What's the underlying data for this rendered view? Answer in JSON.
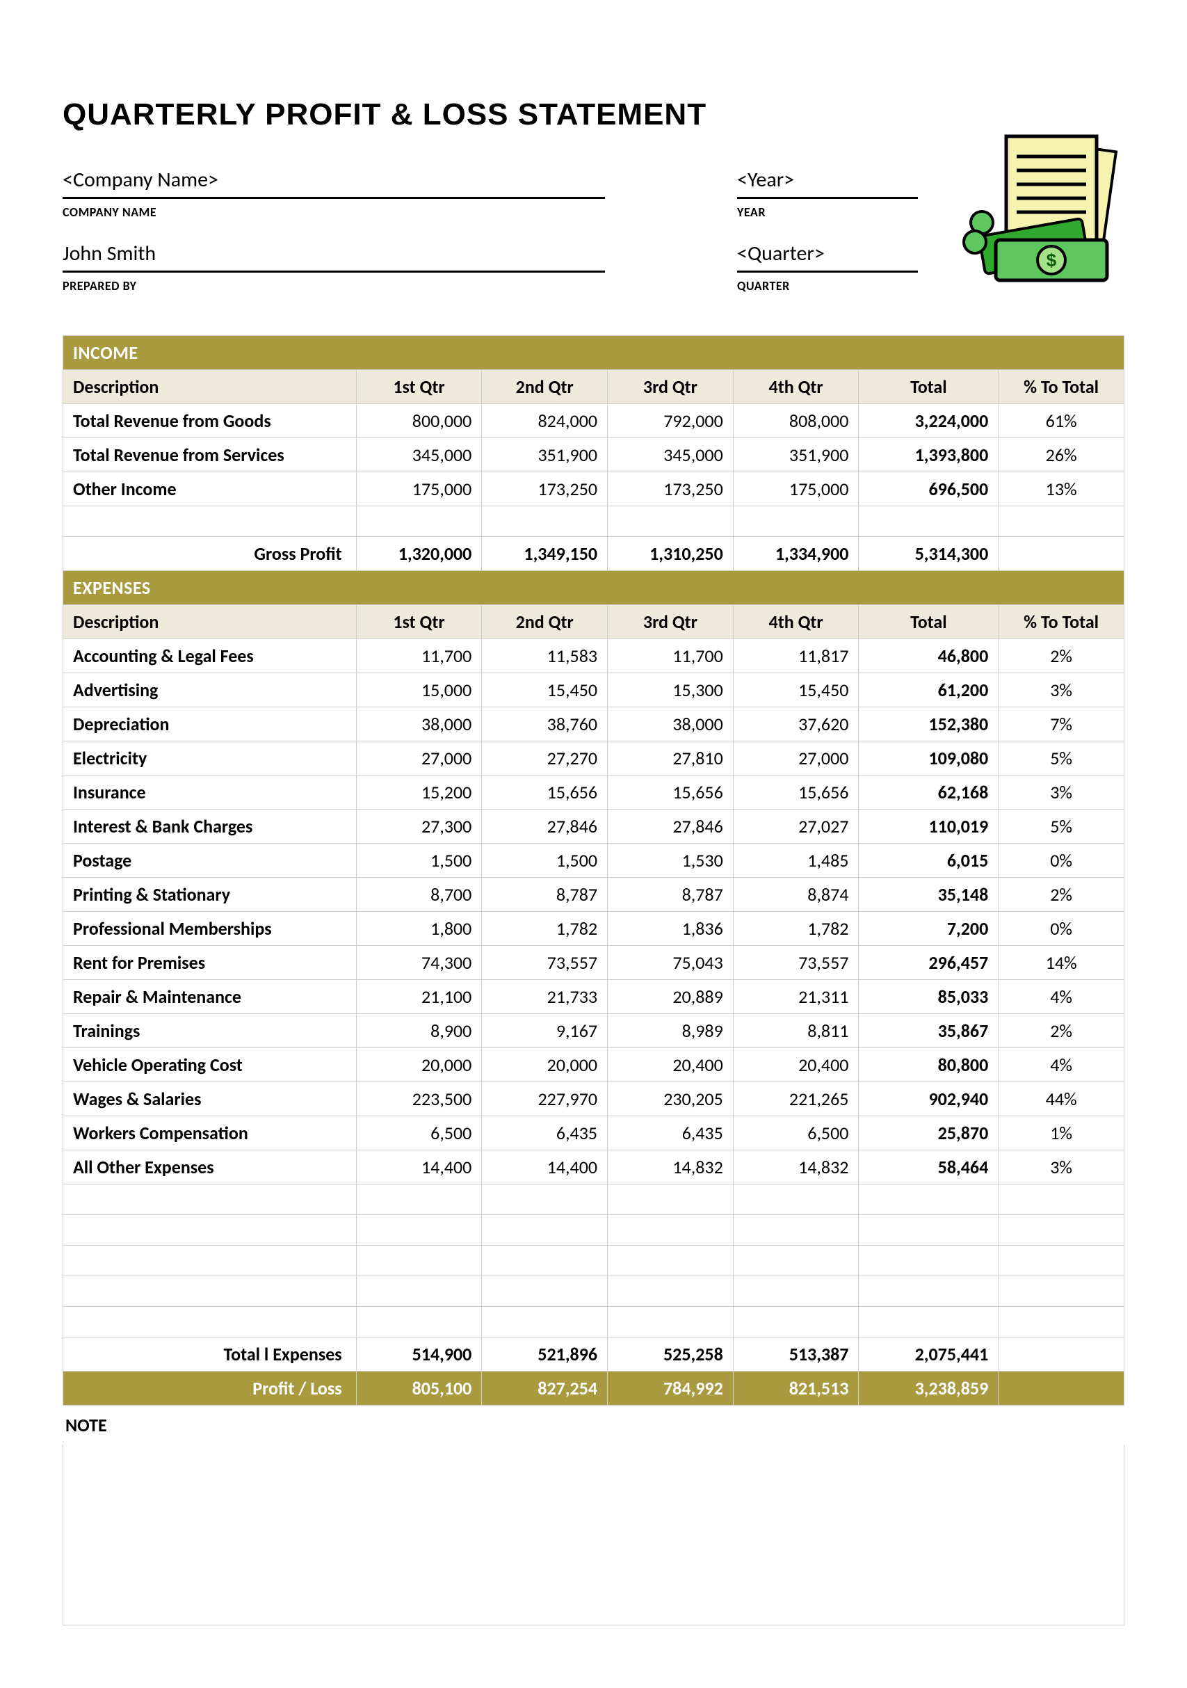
{
  "title": "QUARTERLY PROFIT & LOSS STATEMENT",
  "header": {
    "company_value": "<Company Name>",
    "company_label": "COMPANY NAME",
    "prepared_by_value": "John Smith",
    "prepared_by_label": "PREPARED BY",
    "year_value": "<Year>",
    "year_label": "YEAR",
    "quarter_value": "<Quarter>",
    "quarter_label": "QUARTER"
  },
  "colors": {
    "accent": "#a99a3f",
    "header_bg": "#eeeadb",
    "border": "#cfcfcf",
    "text": "#000000",
    "white": "#ffffff"
  },
  "columns": {
    "desc": "Description",
    "q1": "1st Qtr",
    "q2": "2nd Qtr",
    "q3": "3rd Qtr",
    "q4": "4th Qtr",
    "total": "Total",
    "pct": "% To Total"
  },
  "income": {
    "section_label": "INCOME",
    "rows": [
      {
        "desc": "Total Revenue from Goods",
        "q1": "800,000",
        "q2": "824,000",
        "q3": "792,000",
        "q4": "808,000",
        "total": "3,224,000",
        "pct": "61%"
      },
      {
        "desc": "Total Revenue from Services",
        "q1": "345,000",
        "q2": "351,900",
        "q3": "345,000",
        "q4": "351,900",
        "total": "1,393,800",
        "pct": "26%"
      },
      {
        "desc": "Other Income",
        "q1": "175,000",
        "q2": "173,250",
        "q3": "173,250",
        "q4": "175,000",
        "total": "696,500",
        "pct": "13%"
      }
    ],
    "gross_profit": {
      "label": "Gross Profit",
      "q1": "1,320,000",
      "q2": "1,349,150",
      "q3": "1,310,250",
      "q4": "1,334,900",
      "total": "5,314,300"
    }
  },
  "expenses": {
    "section_label": "EXPENSES",
    "rows": [
      {
        "desc": "Accounting & Legal Fees",
        "q1": "11,700",
        "q2": "11,583",
        "q3": "11,700",
        "q4": "11,817",
        "total": "46,800",
        "pct": "2%"
      },
      {
        "desc": "Advertising",
        "q1": "15,000",
        "q2": "15,450",
        "q3": "15,300",
        "q4": "15,450",
        "total": "61,200",
        "pct": "3%"
      },
      {
        "desc": "Depreciation",
        "q1": "38,000",
        "q2": "38,760",
        "q3": "38,000",
        "q4": "37,620",
        "total": "152,380",
        "pct": "7%"
      },
      {
        "desc": "Electricity",
        "q1": "27,000",
        "q2": "27,270",
        "q3": "27,810",
        "q4": "27,000",
        "total": "109,080",
        "pct": "5%"
      },
      {
        "desc": "Insurance",
        "q1": "15,200",
        "q2": "15,656",
        "q3": "15,656",
        "q4": "15,656",
        "total": "62,168",
        "pct": "3%"
      },
      {
        "desc": "Interest & Bank Charges",
        "q1": "27,300",
        "q2": "27,846",
        "q3": "27,846",
        "q4": "27,027",
        "total": "110,019",
        "pct": "5%"
      },
      {
        "desc": "Postage",
        "q1": "1,500",
        "q2": "1,500",
        "q3": "1,530",
        "q4": "1,485",
        "total": "6,015",
        "pct": "0%"
      },
      {
        "desc": "Printing & Stationary",
        "q1": "8,700",
        "q2": "8,787",
        "q3": "8,787",
        "q4": "8,874",
        "total": "35,148",
        "pct": "2%"
      },
      {
        "desc": "Professional Memberships",
        "q1": "1,800",
        "q2": "1,782",
        "q3": "1,836",
        "q4": "1,782",
        "total": "7,200",
        "pct": "0%"
      },
      {
        "desc": "Rent for Premises",
        "q1": "74,300",
        "q2": "73,557",
        "q3": "75,043",
        "q4": "73,557",
        "total": "296,457",
        "pct": "14%"
      },
      {
        "desc": "Repair & Maintenance",
        "q1": "21,100",
        "q2": "21,733",
        "q3": "20,889",
        "q4": "21,311",
        "total": "85,033",
        "pct": "4%"
      },
      {
        "desc": "Trainings",
        "q1": "8,900",
        "q2": "9,167",
        "q3": "8,989",
        "q4": "8,811",
        "total": "35,867",
        "pct": "2%"
      },
      {
        "desc": "Vehicle Operating Cost",
        "q1": "20,000",
        "q2": "20,000",
        "q3": "20,400",
        "q4": "20,400",
        "total": "80,800",
        "pct": "4%"
      },
      {
        "desc": "Wages & Salaries",
        "q1": "223,500",
        "q2": "227,970",
        "q3": "230,205",
        "q4": "221,265",
        "total": "902,940",
        "pct": "44%"
      },
      {
        "desc": "Workers Compensation",
        "q1": "6,500",
        "q2": "6,435",
        "q3": "6,435",
        "q4": "6,500",
        "total": "25,870",
        "pct": "1%"
      },
      {
        "desc": "All Other Expenses",
        "q1": "14,400",
        "q2": "14,400",
        "q3": "14,832",
        "q4": "14,832",
        "total": "58,464",
        "pct": "3%"
      }
    ],
    "blank_rows": 5,
    "total_expenses": {
      "label": "Total l Expenses",
      "q1": "514,900",
      "q2": "521,896",
      "q3": "525,258",
      "q4": "513,387",
      "total": "2,075,441"
    },
    "profit_loss": {
      "label": "Profit / Loss",
      "q1": "805,100",
      "q2": "827,254",
      "q3": "784,992",
      "q4": "821,513",
      "total": "3,238,859"
    }
  },
  "note_label": "NOTE"
}
